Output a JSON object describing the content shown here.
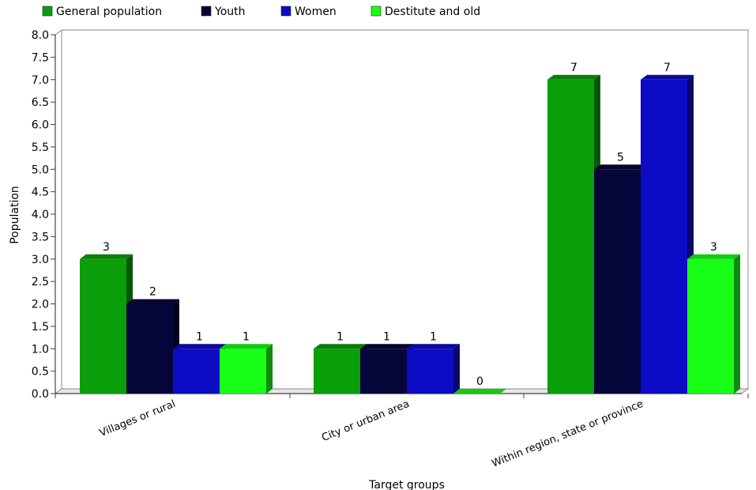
{
  "chart_data": {
    "type": "bar",
    "title": "",
    "xlabel": "Target groups",
    "ylabel": "Population",
    "ylim": [
      0,
      8
    ],
    "yticks": [
      "0.0",
      "0.5",
      "1.0",
      "1.5",
      "2.0",
      "2.5",
      "3.0",
      "3.5",
      "4.0",
      "4.5",
      "5.0",
      "5.5",
      "6.0",
      "6.5",
      "7.0",
      "7.5",
      "8.0"
    ],
    "categories": [
      "Villages or rural",
      "City or urban area",
      "Within region, state or province"
    ],
    "series": [
      {
        "name": "General population",
        "color": "#0b9e0b",
        "values": [
          3,
          1,
          7
        ]
      },
      {
        "name": "Youth",
        "color": "#06063b",
        "values": [
          2,
          1,
          5
        ]
      },
      {
        "name": "Women",
        "color": "#0c0cc6",
        "values": [
          1,
          1,
          7
        ]
      },
      {
        "name": "Destitute and old",
        "color": "#17ff17",
        "values": [
          1,
          0,
          3
        ]
      }
    ],
    "legend_position": "top",
    "grid": false,
    "style": "3d"
  }
}
